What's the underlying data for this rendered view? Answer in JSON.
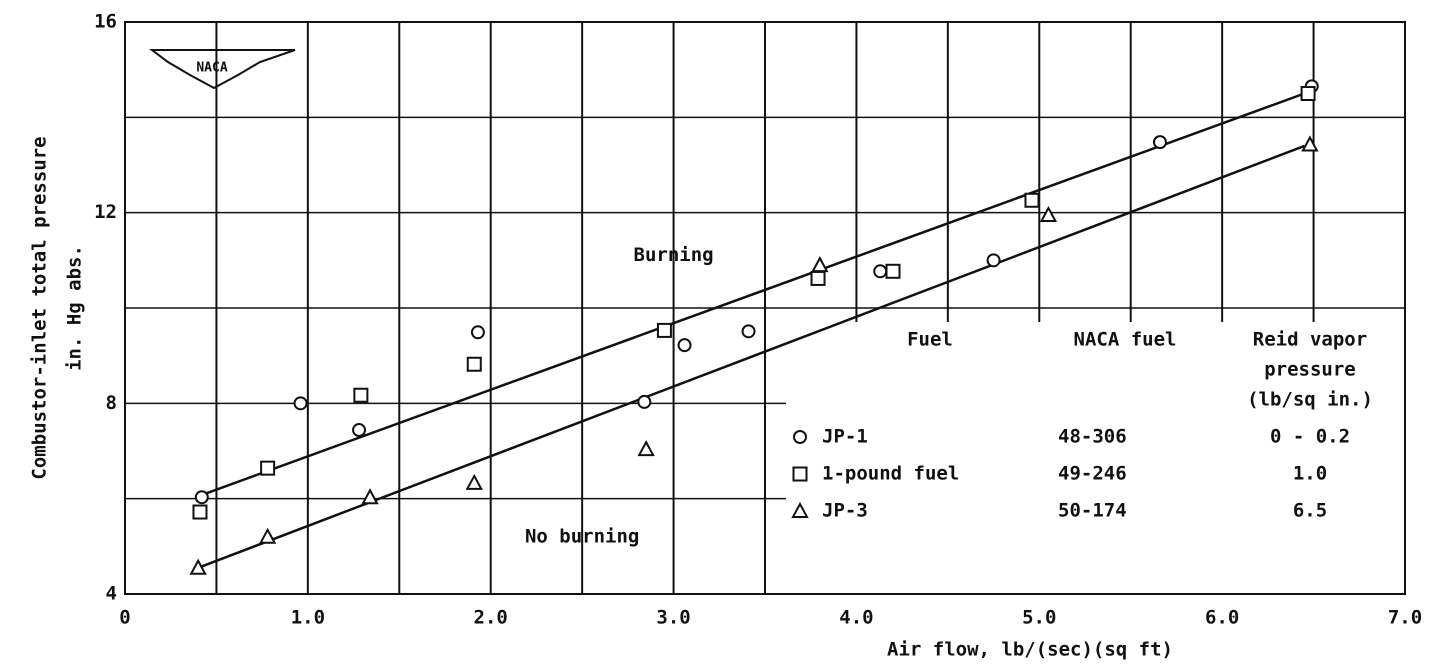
{
  "chart_data": {
    "type": "scatter",
    "xlabel": "Air flow, lb/(sec)(sq ft)",
    "ylabel": [
      "Combustor-inlet total pressure",
      "in. Hg abs."
    ],
    "logo": "NACA",
    "annotations": [
      {
        "text": "Burning",
        "x": 3.0,
        "y": 11.1
      },
      {
        "text": "No burning",
        "x": 2.5,
        "y": 5.2
      }
    ],
    "xlim": [
      0,
      7
    ],
    "ylim": [
      4,
      16
    ],
    "xticks": [
      0,
      {
        "value": 1,
        "label": "1.0"
      },
      {
        "value": 2,
        "label": "2.0"
      },
      {
        "value": 3,
        "label": "3.0"
      },
      {
        "value": 4,
        "label": "4.0"
      },
      {
        "value": 5,
        "label": "5.0"
      },
      {
        "value": 6,
        "label": "6.0"
      },
      {
        "value": 7,
        "label": "7.0"
      }
    ],
    "yticks": [
      4,
      8,
      12,
      16
    ],
    "xminor": [
      0.5,
      1.5,
      2.5,
      3.5,
      4.5,
      5.5,
      6.5
    ],
    "yminor": [
      6,
      10,
      14
    ],
    "grid": true,
    "color": "#111111",
    "legend_headers": [
      "Fuel",
      "NACA fuel",
      [
        "Reid vapor",
        "pressure",
        "(lb/sq in.)"
      ]
    ],
    "series": [
      {
        "name": "JP-1",
        "marker": "circle",
        "naca_fuel": "48-306",
        "reid_vapor_pressure": "0 - 0.2",
        "x": [
          0.42,
          0.96,
          1.28,
          1.93,
          2.84,
          3.06,
          3.41,
          4.13,
          4.75,
          5.66,
          6.49
        ],
        "y": [
          6.03,
          8.0,
          7.44,
          9.49,
          8.03,
          9.22,
          9.51,
          10.77,
          11.0,
          13.48,
          14.65
        ]
      },
      {
        "name": "1-pound fuel",
        "marker": "square",
        "naca_fuel": "49-246",
        "reid_vapor_pressure": "1.0",
        "x": [
          0.41,
          0.78,
          1.29,
          1.91,
          2.95,
          3.79,
          4.2,
          4.96,
          6.47
        ],
        "y": [
          5.72,
          6.64,
          8.17,
          8.82,
          9.53,
          10.62,
          10.77,
          12.26,
          14.5
        ]
      },
      {
        "name": "JP-3",
        "marker": "triangle",
        "naca_fuel": "50-174",
        "reid_vapor_pressure": "6.5",
        "x": [
          0.4,
          0.78,
          1.34,
          1.91,
          2.85,
          3.8,
          5.05,
          6.48
        ],
        "y": [
          4.55,
          5.2,
          6.03,
          6.33,
          7.04,
          10.9,
          11.95,
          13.43
        ]
      }
    ],
    "fit_lines": [
      {
        "x": [
          0.4,
          6.45
        ],
        "y": [
          6.05,
          14.5
        ]
      },
      {
        "x": [
          0.4,
          6.45
        ],
        "y": [
          4.55,
          13.4
        ]
      }
    ]
  }
}
